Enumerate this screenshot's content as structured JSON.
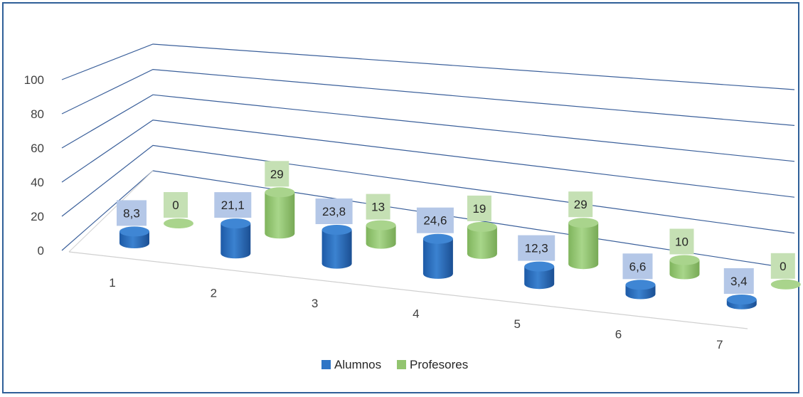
{
  "chart_data": {
    "type": "bar",
    "style": "3d-cylinder",
    "categories": [
      "1",
      "2",
      "3",
      "4",
      "5",
      "6",
      "7"
    ],
    "series": [
      {
        "name": "Alumnos",
        "values": [
          8.3,
          21.1,
          23.8,
          24.6,
          12.3,
          6.6,
          3.4
        ],
        "labels": [
          "8,3",
          "21,1",
          "23,8",
          "24,6",
          "12,3",
          "6,6",
          "3,4"
        ]
      },
      {
        "name": "Profesores",
        "values": [
          0,
          29,
          13,
          19,
          29,
          10,
          0
        ],
        "labels": [
          "0",
          "29",
          "13",
          "19",
          "29",
          "10",
          "0"
        ]
      }
    ],
    "y_ticks": [
      "0",
      "20",
      "40",
      "60",
      "80",
      "100"
    ],
    "ylim": [
      0,
      100
    ],
    "grid": true,
    "legend": "bottom",
    "colors": {
      "Alumnos": "#2e75c6",
      "Profesores": "#92c46f",
      "Alumnos_label_bg": "#b4c7e7",
      "Profesores_label_bg": "#c5e0b4",
      "gridline": "#3a5f9a",
      "frame": "#2f5f98"
    }
  }
}
